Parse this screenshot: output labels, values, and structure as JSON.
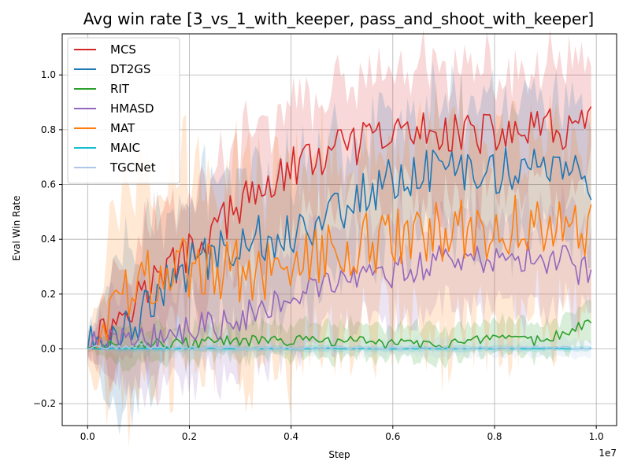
{
  "chart_data": {
    "type": "line",
    "title": "Avg win rate [3_vs_1_with_keeper, pass_and_shoot_with_keeper]",
    "xlabel": "Step",
    "ylabel": "Eval Win Rate",
    "x_offset_label": "1e7",
    "xlim": [
      -0.05,
      1.04
    ],
    "ylim": [
      -0.28,
      1.15
    ],
    "x_ticks": [
      0.0,
      0.2,
      0.4,
      0.6,
      0.8,
      1.0
    ],
    "x_tick_labels": [
      "0.0",
      "0.2",
      "0.4",
      "0.6",
      "0.8",
      "1.0"
    ],
    "y_ticks": [
      -0.2,
      0.0,
      0.2,
      0.4,
      0.6,
      0.8,
      1.0
    ],
    "y_tick_labels": [
      "−0.2",
      "0.0",
      "0.2",
      "0.4",
      "0.6",
      "0.8",
      "1.0"
    ],
    "grid": true,
    "legend_position": "top-left",
    "series": [
      {
        "name": "MCS",
        "color": "#d62728",
        "x": [
          0.0,
          0.1,
          0.2,
          0.3,
          0.4,
          0.5,
          0.6,
          0.7,
          0.8,
          0.9,
          0.99
        ],
        "y": [
          0.0,
          0.2,
          0.35,
          0.52,
          0.66,
          0.73,
          0.78,
          0.8,
          0.78,
          0.8,
          0.81
        ],
        "band": 0.22
      },
      {
        "name": "DT2GS",
        "color": "#1f77b4",
        "x": [
          0.0,
          0.1,
          0.2,
          0.3,
          0.4,
          0.5,
          0.6,
          0.7,
          0.8,
          0.9,
          0.99
        ],
        "y": [
          0.0,
          0.12,
          0.3,
          0.4,
          0.42,
          0.52,
          0.62,
          0.66,
          0.65,
          0.68,
          0.6
        ],
        "band": 0.25
      },
      {
        "name": "RIT",
        "color": "#2ca02c",
        "x": [
          0.0,
          0.1,
          0.2,
          0.3,
          0.4,
          0.5,
          0.6,
          0.7,
          0.8,
          0.9,
          0.99
        ],
        "y": [
          0.0,
          0.02,
          0.02,
          0.03,
          0.03,
          0.03,
          0.02,
          0.02,
          0.03,
          0.03,
          0.1
        ],
        "band": 0.06
      },
      {
        "name": "HMASD",
        "color": "#9467bd",
        "x": [
          0.0,
          0.1,
          0.2,
          0.3,
          0.4,
          0.5,
          0.6,
          0.7,
          0.8,
          0.9,
          0.99
        ],
        "y": [
          0.0,
          0.05,
          0.06,
          0.12,
          0.21,
          0.24,
          0.28,
          0.32,
          0.33,
          0.34,
          0.28
        ],
        "band": 0.18
      },
      {
        "name": "MAT",
        "color": "#ff7f0e",
        "x": [
          0.0,
          0.1,
          0.2,
          0.3,
          0.4,
          0.5,
          0.6,
          0.7,
          0.8,
          0.9,
          0.99
        ],
        "y": [
          0.0,
          0.25,
          0.3,
          0.28,
          0.32,
          0.38,
          0.4,
          0.43,
          0.45,
          0.44,
          0.46
        ],
        "band": 0.35
      },
      {
        "name": "MAIC",
        "color": "#17becf",
        "x": [
          0.0,
          0.1,
          0.2,
          0.3,
          0.4,
          0.5,
          0.6,
          0.7,
          0.8,
          0.9,
          0.99
        ],
        "y": [
          0.0,
          0.0,
          0.0,
          0.0,
          0.0,
          0.0,
          0.0,
          0.0,
          0.0,
          0.0,
          0.0
        ],
        "band": 0.01
      },
      {
        "name": "TGCNet",
        "color": "#aec7e8",
        "x": [
          0.0,
          0.1,
          0.2,
          0.3,
          0.4,
          0.5,
          0.6,
          0.7,
          0.8,
          0.9,
          0.99
        ],
        "y": [
          0.0,
          0.01,
          0.0,
          0.0,
          0.0,
          0.0,
          0.0,
          0.0,
          0.0,
          0.0,
          0.0
        ],
        "band": 0.03
      }
    ]
  }
}
